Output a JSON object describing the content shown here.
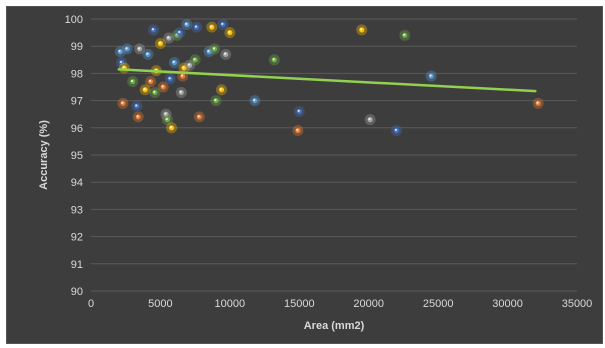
{
  "chart_data": {
    "type": "scatter",
    "xlabel": "Area (mm2)",
    "ylabel": "Accuracy (%)",
    "xlim": [
      0,
      35000
    ],
    "ylim": [
      90,
      100
    ],
    "x_ticks": [
      0,
      5000,
      10000,
      15000,
      20000,
      25000,
      30000,
      35000
    ],
    "y_ticks": [
      90,
      91,
      92,
      93,
      94,
      95,
      96,
      97,
      98,
      99,
      100
    ],
    "x_tick_labels": [
      "0",
      "5000",
      "10000",
      "15000",
      "20000",
      "25000",
      "30000",
      "35000"
    ],
    "y_tick_labels": [
      "90",
      "91",
      "92",
      "93",
      "94",
      "95",
      "96",
      "97",
      "98",
      "99",
      "100"
    ],
    "grid": true,
    "legend": "none",
    "background": "#3d3d3d",
    "trendline": {
      "x": [
        2000,
        32000
      ],
      "y": [
        98.15,
        97.35
      ],
      "color": "#92d050"
    },
    "points": [
      {
        "x": 2100,
        "y": 98.8,
        "color": "#5b9bd5"
      },
      {
        "x": 2200,
        "y": 98.4,
        "color": "#4472c4"
      },
      {
        "x": 2300,
        "y": 96.9,
        "color": "#ed7d31"
      },
      {
        "x": 2400,
        "y": 98.2,
        "color": "#ffc000"
      },
      {
        "x": 2600,
        "y": 98.9,
        "color": "#5b9bd5"
      },
      {
        "x": 3000,
        "y": 97.7,
        "color": "#70ad47"
      },
      {
        "x": 3300,
        "y": 96.8,
        "color": "#4472c4"
      },
      {
        "x": 3400,
        "y": 96.4,
        "color": "#ed7d31"
      },
      {
        "x": 3500,
        "y": 98.9,
        "color": "#a5a5a5"
      },
      {
        "x": 3900,
        "y": 97.4,
        "color": "#ffc000"
      },
      {
        "x": 4100,
        "y": 98.7,
        "color": "#5b9bd5"
      },
      {
        "x": 4300,
        "y": 97.7,
        "color": "#ed7d31"
      },
      {
        "x": 4500,
        "y": 99.6,
        "color": "#4472c4"
      },
      {
        "x": 4600,
        "y": 97.3,
        "color": "#70ad47"
      },
      {
        "x": 4700,
        "y": 98.1,
        "color": "#ffc000"
      },
      {
        "x": 5000,
        "y": 99.1,
        "color": "#ffc000"
      },
      {
        "x": 5200,
        "y": 97.5,
        "color": "#ed7d31"
      },
      {
        "x": 5400,
        "y": 96.5,
        "color": "#a5a5a5"
      },
      {
        "x": 5500,
        "y": 96.3,
        "color": "#70ad47"
      },
      {
        "x": 5600,
        "y": 99.3,
        "color": "#a5a5a5"
      },
      {
        "x": 5700,
        "y": 97.8,
        "color": "#4472c4"
      },
      {
        "x": 5800,
        "y": 96.0,
        "color": "#ffc000"
      },
      {
        "x": 6000,
        "y": 98.4,
        "color": "#5b9bd5"
      },
      {
        "x": 6200,
        "y": 99.4,
        "color": "#70ad47"
      },
      {
        "x": 6400,
        "y": 99.5,
        "color": "#4472c4"
      },
      {
        "x": 6500,
        "y": 97.3,
        "color": "#a5a5a5"
      },
      {
        "x": 6600,
        "y": 97.9,
        "color": "#ed7d31"
      },
      {
        "x": 6700,
        "y": 98.2,
        "color": "#ffc000"
      },
      {
        "x": 6900,
        "y": 99.8,
        "color": "#5b9bd5"
      },
      {
        "x": 7100,
        "y": 98.3,
        "color": "#a5a5a5"
      },
      {
        "x": 7500,
        "y": 98.5,
        "color": "#70ad47"
      },
      {
        "x": 7600,
        "y": 99.7,
        "color": "#4472c4"
      },
      {
        "x": 7800,
        "y": 96.4,
        "color": "#ed7d31"
      },
      {
        "x": 8500,
        "y": 98.8,
        "color": "#5b9bd5"
      },
      {
        "x": 8700,
        "y": 99.7,
        "color": "#ffc000"
      },
      {
        "x": 8900,
        "y": 98.9,
        "color": "#70ad47"
      },
      {
        "x": 9000,
        "y": 97.0,
        "color": "#70ad47"
      },
      {
        "x": 9400,
        "y": 97.4,
        "color": "#ffc000"
      },
      {
        "x": 9500,
        "y": 99.8,
        "color": "#4472c4"
      },
      {
        "x": 9700,
        "y": 98.7,
        "color": "#a5a5a5"
      },
      {
        "x": 10000,
        "y": 99.5,
        "color": "#ffc000"
      },
      {
        "x": 11800,
        "y": 97.0,
        "color": "#5b9bd5"
      },
      {
        "x": 13200,
        "y": 98.5,
        "color": "#70ad47"
      },
      {
        "x": 14900,
        "y": 95.9,
        "color": "#ed7d31"
      },
      {
        "x": 15000,
        "y": 96.6,
        "color": "#4472c4"
      },
      {
        "x": 19500,
        "y": 99.6,
        "color": "#ffc000"
      },
      {
        "x": 20100,
        "y": 96.3,
        "color": "#a5a5a5"
      },
      {
        "x": 22000,
        "y": 95.9,
        "color": "#4472c4"
      },
      {
        "x": 22600,
        "y": 99.4,
        "color": "#70ad47"
      },
      {
        "x": 24500,
        "y": 97.9,
        "color": "#5b9bd5"
      },
      {
        "x": 32200,
        "y": 96.9,
        "color": "#ed7d31"
      }
    ]
  }
}
